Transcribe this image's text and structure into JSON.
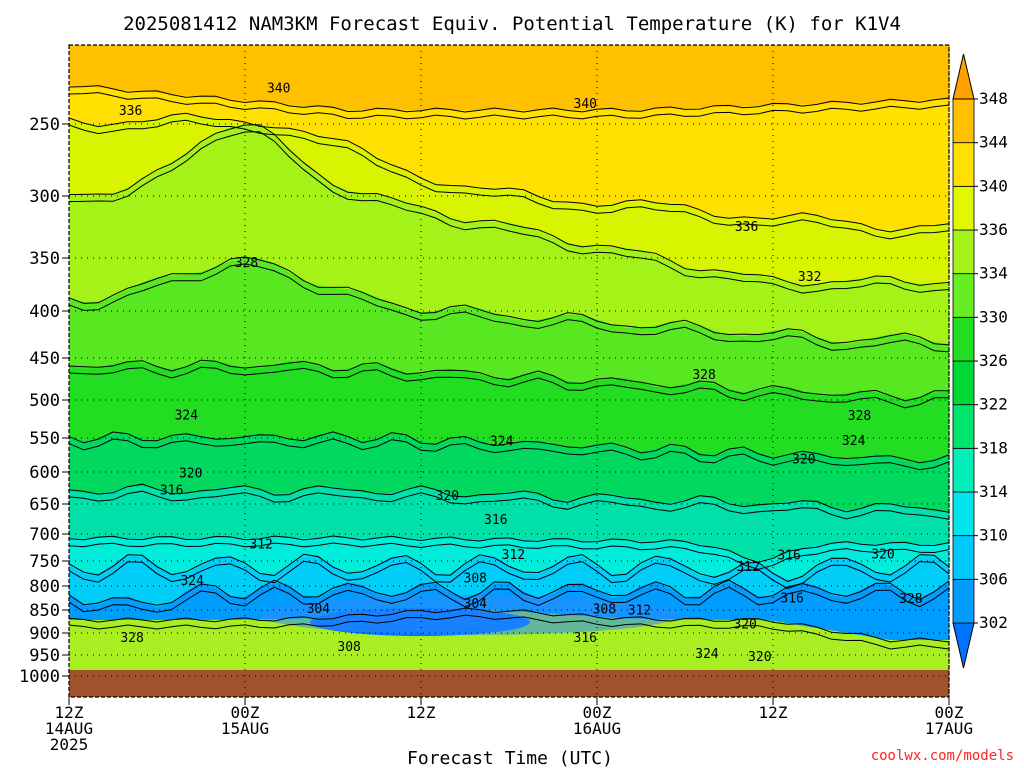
{
  "chart_data": {
    "type": "heatmap",
    "title": "2025081412 NAM3KM Forecast Equiv. Potential Temperature (K) for K1V4",
    "xlabel": "Forecast Time (UTC)",
    "ylabel": "",
    "y_ticks": [
      "250",
      "300",
      "350",
      "400",
      "450",
      "500",
      "550",
      "600",
      "650",
      "700",
      "750",
      "800",
      "850",
      "900",
      "950",
      "1000"
    ],
    "x_ticks": [
      {
        "hour": 0,
        "lines": [
          "12Z",
          "14AUG",
          "2025"
        ]
      },
      {
        "hour": 12,
        "lines": [
          "00Z",
          "15AUG"
        ]
      },
      {
        "hour": 24,
        "lines": [
          "12Z"
        ]
      },
      {
        "hour": 36,
        "lines": [
          "00Z",
          "16AUG"
        ]
      },
      {
        "hour": 48,
        "lines": [
          "12Z"
        ]
      },
      {
        "hour": 60,
        "lines": [
          "00Z",
          "17AUG"
        ]
      }
    ],
    "colorbar": {
      "levels": [
        302,
        306,
        310,
        314,
        318,
        322,
        326,
        330,
        334,
        336,
        340,
        344,
        348
      ],
      "colors": [
        "#0073ff",
        "#009dff",
        "#00c8ff",
        "#00e6ec",
        "#00f0b8",
        "#00e36c",
        "#00d838",
        "#22dd22",
        "#66ee22",
        "#a4f218",
        "#e0f800",
        "#ffe000",
        "#ffc000",
        "#ffa000"
      ]
    },
    "contour_labels": [
      {
        "value": "340",
        "hour": 14.3,
        "hpa": 205
      },
      {
        "value": "340",
        "hour": 35.2,
        "hpa": 224
      },
      {
        "value": "336",
        "hour": 4.2,
        "hpa": 233
      },
      {
        "value": "336",
        "hour": 46.2,
        "hpa": 324
      },
      {
        "value": "332",
        "hour": 50.5,
        "hpa": 367
      },
      {
        "value": "328",
        "hour": 12.1,
        "hpa": 354
      },
      {
        "value": "328",
        "hour": 43.3,
        "hpa": 469
      },
      {
        "value": "328",
        "hour": 53.9,
        "hpa": 520
      },
      {
        "value": "328",
        "hour": 57.4,
        "hpa": 825
      },
      {
        "value": "328",
        "hour": 4.3,
        "hpa": 909
      },
      {
        "value": "324",
        "hour": 8.0,
        "hpa": 519
      },
      {
        "value": "324",
        "hour": 29.5,
        "hpa": 554
      },
      {
        "value": "324",
        "hour": 53.5,
        "hpa": 553
      },
      {
        "value": "324",
        "hour": 8.4,
        "hpa": 788
      },
      {
        "value": "324",
        "hour": 43.5,
        "hpa": 946
      },
      {
        "value": "320",
        "hour": 8.3,
        "hpa": 601
      },
      {
        "value": "320",
        "hour": 50.1,
        "hpa": 580
      },
      {
        "value": "320",
        "hour": 25.8,
        "hpa": 636
      },
      {
        "value": "320",
        "hour": 46.1,
        "hpa": 879
      },
      {
        "value": "320",
        "hour": 47.1,
        "hpa": 952
      },
      {
        "value": "320",
        "hour": 55.5,
        "hpa": 736
      },
      {
        "value": "316",
        "hour": 7.0,
        "hpa": 627
      },
      {
        "value": "316",
        "hour": 29.1,
        "hpa": 675
      },
      {
        "value": "316",
        "hour": 49.1,
        "hpa": 738
      },
      {
        "value": "316",
        "hour": 49.3,
        "hpa": 824
      },
      {
        "value": "316",
        "hour": 35.2,
        "hpa": 909
      },
      {
        "value": "312",
        "hour": 13.1,
        "hpa": 718
      },
      {
        "value": "312",
        "hour": 30.3,
        "hpa": 737
      },
      {
        "value": "312",
        "hour": 46.3,
        "hpa": 760
      },
      {
        "value": "312",
        "hour": 38.9,
        "hpa": 849
      },
      {
        "value": "308",
        "hour": 27.7,
        "hpa": 783
      },
      {
        "value": "308",
        "hour": 36.5,
        "hpa": 847
      },
      {
        "value": "308",
        "hour": 19.1,
        "hpa": 930
      },
      {
        "value": "304",
        "hour": 17.0,
        "hpa": 846
      },
      {
        "value": "304",
        "hour": 27.7,
        "hpa": 835
      }
    ]
  },
  "watermark": "coolwx.com/models"
}
